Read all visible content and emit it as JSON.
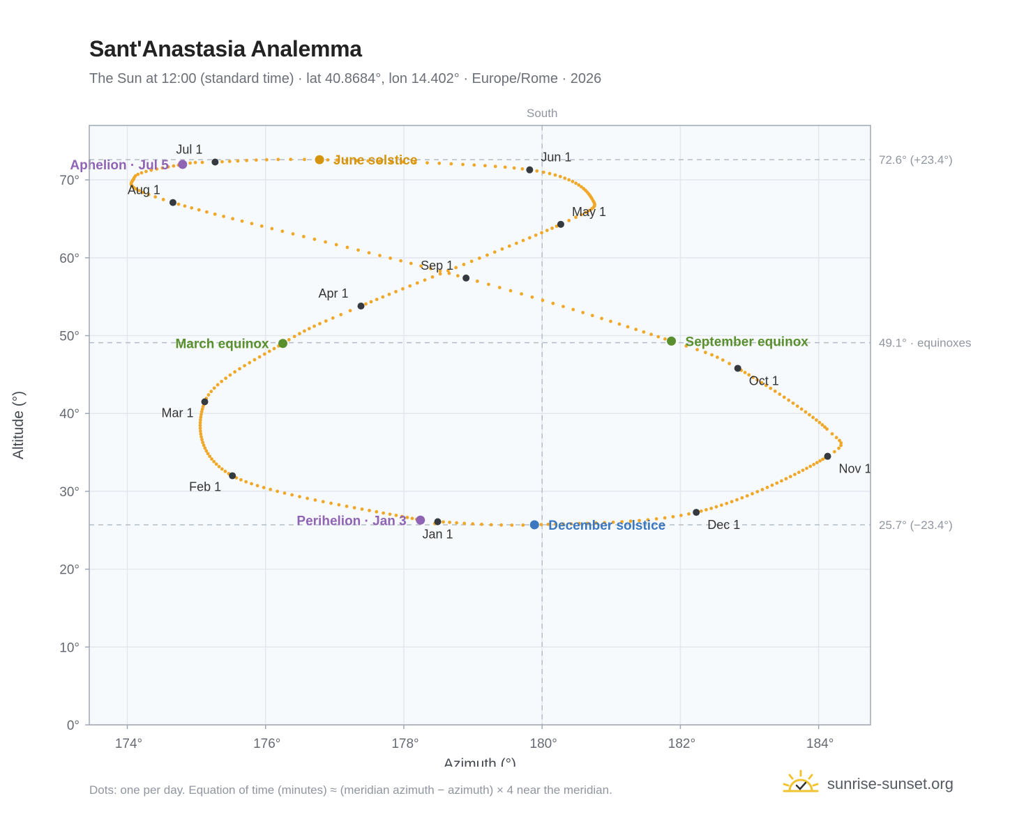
{
  "header": {
    "title": "Sant'Anastasia Analemma",
    "subtitle": "The Sun at 12:00 (standard time) · lat 40.8684°, lon 14.402° · Europe/Rome · 2026"
  },
  "footer": {
    "note": "Dots: one per day. Equation of time (minutes) ≈ (meridian azimuth − azimuth) × 4 near the meridian.",
    "brand": "sunrise-sunset.org",
    "brand_icon": "sun-check-icon"
  },
  "colors": {
    "path": "#f0a82a",
    "month_marker": "#343a40",
    "june_solstice": "#d4940e",
    "december_solstice": "#3b78c0",
    "equinox": "#5a8f2e",
    "apsis": "#9064b4",
    "plot_bg": "#f7fafc",
    "grid": "#e3e8ee",
    "frame": "#a0a8b4"
  },
  "chart_data": {
    "type": "scatter",
    "xlabel": "Azimuth (°)",
    "ylabel": "Altitude (°)",
    "xlim": [
      173.45,
      184.75
    ],
    "ylim": [
      0,
      77
    ],
    "x_ticks": [
      174,
      176,
      178,
      180,
      182,
      184
    ],
    "x_tick_labels": [
      "174°",
      "176°",
      "178°",
      "180°",
      "182°",
      "184°"
    ],
    "y_ticks": [
      0,
      10,
      20,
      30,
      40,
      50,
      60,
      70
    ],
    "y_tick_labels": [
      "0°",
      "10°",
      "20°",
      "30°",
      "40°",
      "50°",
      "60°",
      "70°"
    ],
    "grid": true,
    "reference_lines": {
      "meridian": {
        "azimuth": 180,
        "label": "South"
      },
      "altitudes": [
        {
          "value": 72.6,
          "label": "72.6° (+23.4°)"
        },
        {
          "value": 49.1,
          "label": "49.1° · equinoxes"
        },
        {
          "value": 25.7,
          "label": "25.7° (−23.4°)"
        }
      ]
    },
    "month_markers": [
      {
        "label": "Jan 1",
        "azimuth": 178.49,
        "altitude": 26.1,
        "label_pos": "below"
      },
      {
        "label": "Feb 1",
        "azimuth": 175.52,
        "altitude": 32.0,
        "label_pos": "below-left"
      },
      {
        "label": "Mar 1",
        "azimuth": 175.12,
        "altitude": 41.5,
        "label_pos": "below-left"
      },
      {
        "label": "Apr 1",
        "azimuth": 177.38,
        "altitude": 53.8,
        "label_pos": "above-left"
      },
      {
        "label": "May 1",
        "azimuth": 180.27,
        "altitude": 64.3,
        "label_pos": "above-right"
      },
      {
        "label": "Jun 1",
        "azimuth": 179.82,
        "altitude": 71.3,
        "label_pos": "above-right"
      },
      {
        "label": "Jul 1",
        "azimuth": 175.27,
        "altitude": 72.3,
        "label_pos": "above-left"
      },
      {
        "label": "Aug 1",
        "azimuth": 174.66,
        "altitude": 67.1,
        "label_pos": "above-left"
      },
      {
        "label": "Sep 1",
        "azimuth": 178.9,
        "altitude": 57.4,
        "label_pos": "above-left"
      },
      {
        "label": "Oct 1",
        "azimuth": 182.83,
        "altitude": 45.8,
        "label_pos": "below-right"
      },
      {
        "label": "Nov 1",
        "azimuth": 184.13,
        "altitude": 34.5,
        "label_pos": "below-right"
      },
      {
        "label": "Dec 1",
        "azimuth": 182.23,
        "altitude": 27.3,
        "label_pos": "below-right"
      }
    ],
    "events": [
      {
        "label": "March equinox",
        "azimuth": 176.25,
        "altitude": 49.0,
        "color": "#5a8f2e",
        "label_pos": "left"
      },
      {
        "label": "June solstice",
        "azimuth": 176.78,
        "altitude": 72.6,
        "color": "#d4940e",
        "label_pos": "right"
      },
      {
        "label": "September equinox",
        "azimuth": 181.87,
        "altitude": 49.3,
        "color": "#5a8f2e",
        "label_pos": "right"
      },
      {
        "label": "December solstice",
        "azimuth": 179.89,
        "altitude": 25.7,
        "color": "#3b78c0",
        "label_pos": "right"
      },
      {
        "label": "Perihelion · Jan 3",
        "azimuth": 178.24,
        "altitude": 26.3,
        "color": "#9064b4",
        "label_pos": "left"
      },
      {
        "label": "Aphelion · Jul 5",
        "azimuth": 174.8,
        "altitude": 72.0,
        "color": "#9064b4",
        "label_pos": "left"
      }
    ]
  }
}
